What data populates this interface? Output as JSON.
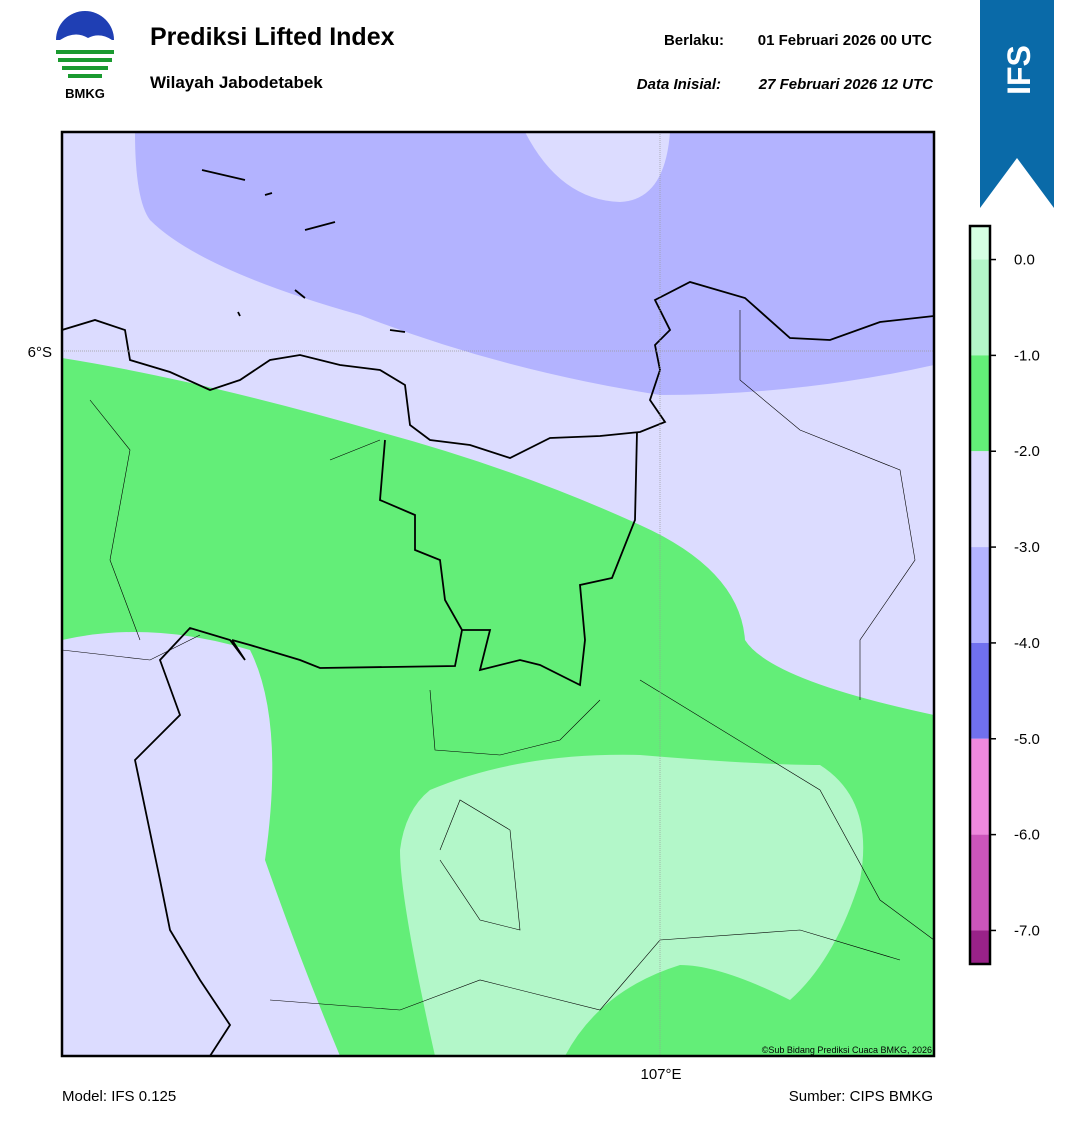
{
  "header": {
    "logo_text": "BMKG",
    "title": "Prediksi Lifted Index",
    "subtitle": "Wilayah Jabodetabek",
    "valid_label": "Berlaku:",
    "valid": "01 Februari 2026 00 UTC",
    "init_label": "Data Inisial:",
    "init": "27 Februari 2026 12 UTC"
  },
  "badge": "IFS",
  "map": {
    "lat_label": "6°S",
    "lon_label": "107°E",
    "copyright": "©Sub Bidang Prediksi Cuaca BMKG, 2026"
  },
  "colorbar": {
    "lim": [
      -7.35,
      0.35
    ],
    "ticks": [
      {
        "value": 0,
        "label": "0.0"
      },
      {
        "value": -1,
        "label": "-1.0"
      },
      {
        "value": -2,
        "label": "-2.0"
      },
      {
        "value": -3,
        "label": "-3.0"
      },
      {
        "value": -4,
        "label": "-4.0"
      },
      {
        "value": -5,
        "label": "-5.0"
      },
      {
        "value": -6,
        "label": "-6.0"
      },
      {
        "value": -7,
        "label": "-7.0"
      }
    ],
    "colors": [
      "#d6ffe3",
      "#b3f7c9",
      "#63ee78",
      "#dcdcff",
      "#b3b3ff",
      "#7070ee",
      "#ee88dd",
      "#cc55bb",
      "#992288"
    ]
  },
  "footer": {
    "model": "Model: IFS 0.125",
    "source": "Sumber: CIPS BMKG"
  }
}
